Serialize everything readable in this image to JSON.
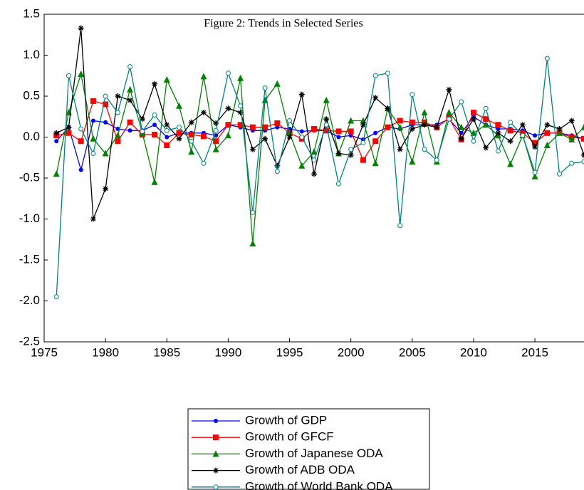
{
  "chart_data": {
    "type": "line",
    "title": "Figure 2: Trends in Selected Series",
    "x": [
      1976,
      1977,
      1978,
      1979,
      1980,
      1981,
      1982,
      1983,
      1984,
      1985,
      1986,
      1987,
      1988,
      1989,
      1990,
      1991,
      1992,
      1993,
      1994,
      1995,
      1996,
      1997,
      1998,
      1999,
      2000,
      2001,
      2002,
      2003,
      2004,
      2005,
      2006,
      2007,
      2008,
      2009,
      2010,
      2011,
      2012,
      2013,
      2014,
      2015,
      2016,
      2017,
      2018,
      2019
    ],
    "series": [
      {
        "name": "Growth of GDP",
        "color": "#0000ff",
        "marker": "circle",
        "values": [
          -0.05,
          0.12,
          -0.4,
          0.2,
          0.18,
          0.1,
          0.08,
          0.08,
          0.15,
          0.0,
          0.05,
          0.05,
          0.05,
          0.02,
          0.15,
          0.12,
          0.08,
          0.08,
          0.12,
          0.1,
          0.07,
          0.08,
          0.08,
          0.0,
          0.02,
          -0.03,
          0.05,
          0.12,
          0.1,
          0.15,
          0.15,
          0.15,
          0.22,
          0.05,
          0.25,
          0.15,
          0.1,
          0.1,
          0.08,
          0.02,
          0.05,
          0.05,
          0.02,
          -0.02
        ]
      },
      {
        "name": "Growth of GFCF",
        "color": "#ff0000",
        "marker": "square",
        "values": [
          0.02,
          0.05,
          -0.05,
          0.44,
          0.4,
          -0.05,
          0.18,
          0.03,
          0.03,
          -0.1,
          0.05,
          0.03,
          0.01,
          -0.05,
          0.15,
          0.15,
          0.12,
          0.12,
          0.17,
          0.05,
          -0.02,
          0.1,
          0.08,
          0.07,
          0.07,
          -0.28,
          -0.05,
          0.12,
          0.2,
          0.18,
          0.18,
          0.12,
          0.23,
          -0.03,
          0.3,
          0.22,
          0.15,
          0.08,
          0.05,
          -0.07,
          0.05,
          0.05,
          0.0,
          -0.02
        ]
      },
      {
        "name": "Growth of Japanese ODA",
        "color": "#008000",
        "marker": "triangle",
        "values": [
          -0.45,
          0.3,
          0.77,
          -0.02,
          -0.2,
          0.02,
          0.58,
          0.05,
          -0.55,
          0.7,
          0.38,
          -0.18,
          0.74,
          -0.15,
          0.02,
          0.72,
          -1.3,
          0.45,
          0.65,
          0.05,
          -0.35,
          -0.18,
          0.45,
          -0.2,
          0.2,
          0.2,
          -0.32,
          0.35,
          0.12,
          -0.3,
          0.3,
          -0.3,
          0.3,
          0.12,
          0.05,
          0.15,
          0.02,
          -0.33,
          0.02,
          -0.48,
          -0.1,
          0.05,
          -0.03,
          0.12
        ]
      },
      {
        "name": "Growth of ADB ODA",
        "color": "#000000",
        "marker": "star",
        "values": [
          0.05,
          0.12,
          1.33,
          -1.0,
          -0.63,
          0.5,
          0.45,
          0.22,
          0.65,
          0.15,
          -0.02,
          0.18,
          0.3,
          0.17,
          0.35,
          0.3,
          -0.15,
          -0.02,
          -0.35,
          0.0,
          0.52,
          -0.45,
          0.22,
          -0.2,
          -0.22,
          0.15,
          0.48,
          0.35,
          -0.15,
          0.1,
          0.15,
          0.12,
          0.58,
          -0.02,
          0.22,
          -0.13,
          0.05,
          -0.05,
          0.15,
          -0.12,
          0.15,
          0.1,
          0.2,
          -0.22
        ]
      },
      {
        "name": "Growth of World Bank ODA",
        "color": "#008080",
        "marker": "open-circle",
        "values": [
          -1.95,
          0.75,
          0.1,
          -0.2,
          0.5,
          0.3,
          0.86,
          0.07,
          0.27,
          0.08,
          0.12,
          -0.05,
          -0.32,
          0.08,
          0.78,
          0.38,
          -0.92,
          0.6,
          -0.42,
          0.2,
          0.0,
          -0.28,
          0.15,
          -0.57,
          -0.15,
          -0.07,
          0.75,
          0.78,
          -1.08,
          0.52,
          -0.15,
          -0.28,
          0.22,
          0.43,
          -0.05,
          0.35,
          -0.17,
          0.18,
          0.02,
          -0.43,
          0.96,
          -0.45,
          -0.32,
          -0.3
        ]
      }
    ],
    "xlim": [
      1975,
      2019
    ],
    "ylim": [
      -2.5,
      1.5
    ],
    "xticks": [
      1975,
      1980,
      1985,
      1990,
      1995,
      2000,
      2005,
      2010,
      2015
    ],
    "yticks": [
      -2.5,
      {
        "value": -2.0,
        "label": "-2.0"
      },
      -1.5,
      {
        "value": -1.0,
        "label": "-1.0"
      },
      -0.5,
      {
        "value": 0.0,
        "label": "0.0"
      },
      0.5,
      {
        "value": 1.0,
        "label": "1.0"
      },
      1.5
    ],
    "legend": "bottom"
  }
}
